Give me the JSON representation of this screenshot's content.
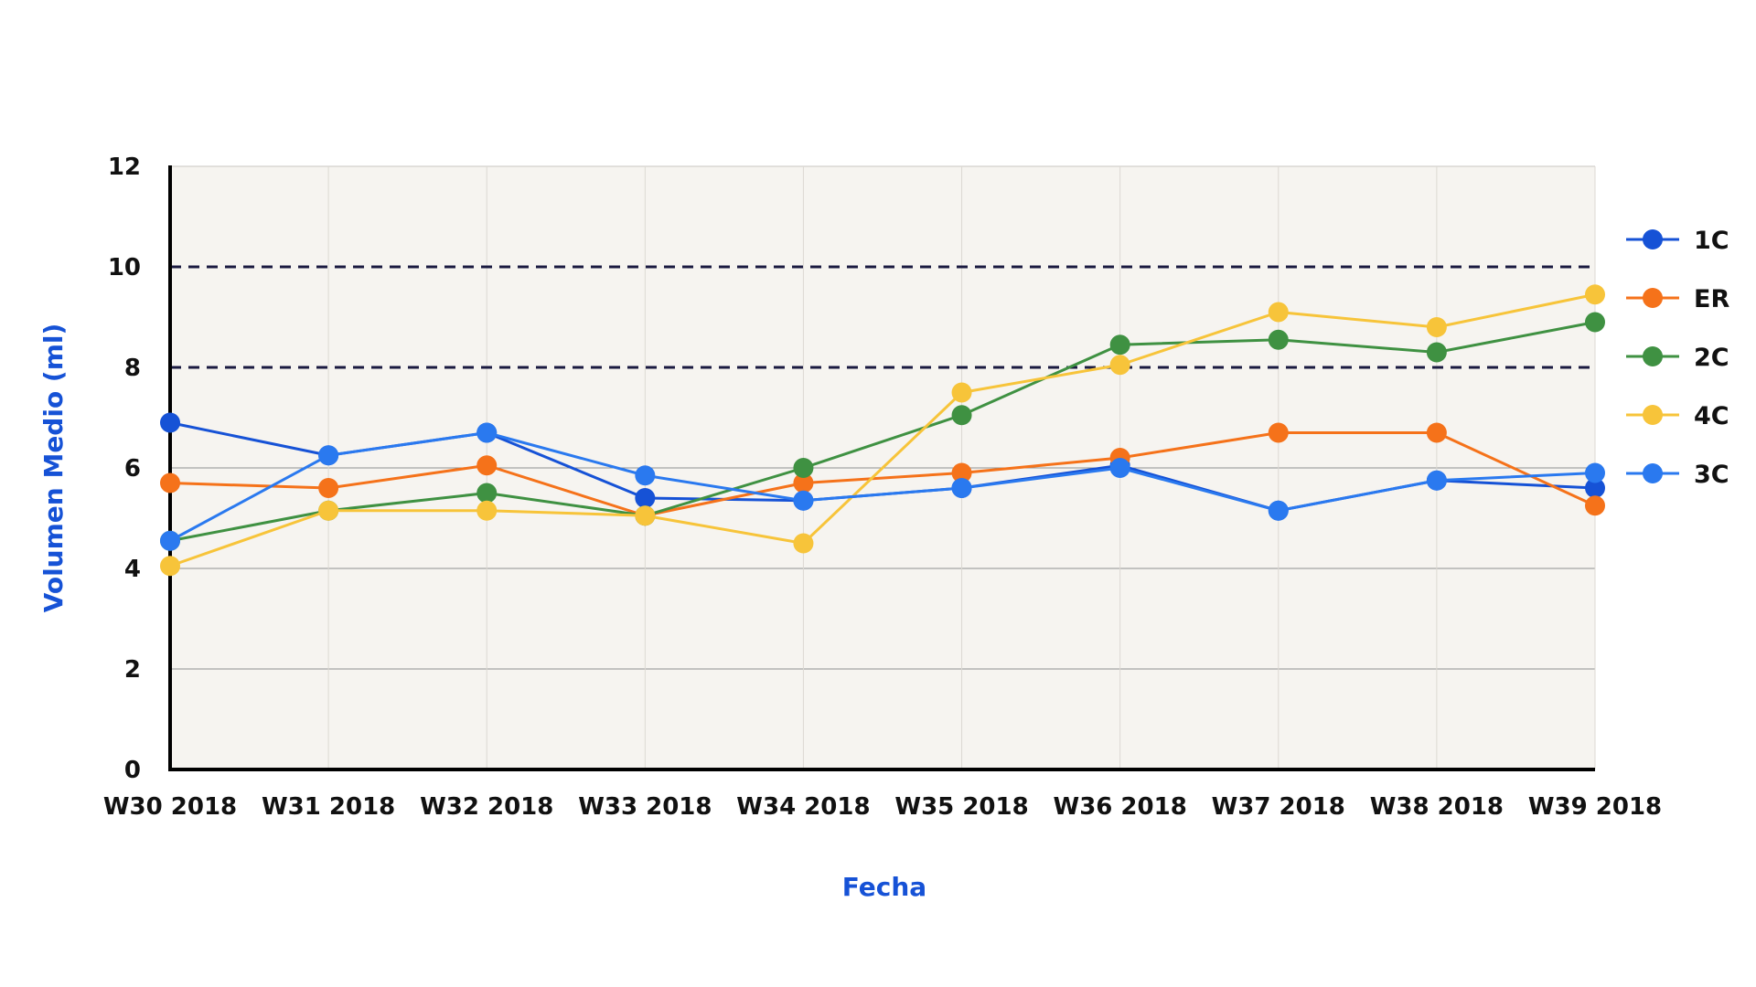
{
  "chart_data": {
    "type": "line",
    "title": "",
    "xlabel": "Fecha",
    "ylabel": "Volumen Medio (ml)",
    "categories": [
      "W30 2018",
      "W31 2018",
      "W32 2018",
      "W33 2018",
      "W34 2018",
      "W35 2018",
      "W36 2018",
      "W37 2018",
      "W38 2018",
      "W39 2018"
    ],
    "ylim": [
      0,
      12
    ],
    "yticks": [
      "0",
      "2",
      "4",
      "6",
      "8",
      "10",
      "12"
    ],
    "reference_lines": [
      8,
      10
    ],
    "grid": true,
    "legend_position": "right",
    "series": [
      {
        "name": "1C",
        "color": "#1652d6",
        "values": [
          6.9,
          6.25,
          6.7,
          5.4,
          5.35,
          5.6,
          6.05,
          5.15,
          5.75,
          5.6
        ]
      },
      {
        "name": "ER",
        "color": "#f5721a",
        "values": [
          5.7,
          5.6,
          6.05,
          5.05,
          5.7,
          5.9,
          6.2,
          6.7,
          6.7,
          5.25
        ]
      },
      {
        "name": "2C",
        "color": "#3f9142",
        "values": [
          4.55,
          5.15,
          5.5,
          5.05,
          6.0,
          7.05,
          8.45,
          8.55,
          8.3,
          8.9
        ]
      },
      {
        "name": "4C",
        "color": "#f7c43a",
        "values": [
          4.05,
          5.15,
          5.15,
          5.05,
          4.5,
          7.5,
          8.05,
          9.1,
          8.8,
          9.45
        ]
      },
      {
        "name": "3C",
        "color": "#2a79ef",
        "values": [
          4.55,
          6.25,
          6.7,
          5.85,
          5.35,
          5.6,
          6.0,
          5.15,
          5.75,
          5.9
        ]
      }
    ],
    "colors": {
      "plot_background": "#f6f4f0",
      "axis_title": "#1652d6",
      "reference_line": "#1a1a40"
    }
  }
}
